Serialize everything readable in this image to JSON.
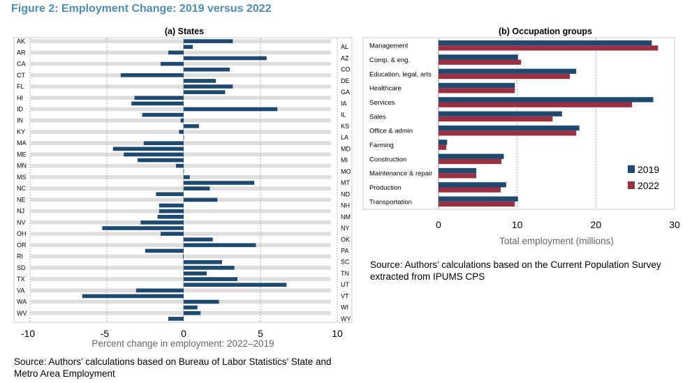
{
  "figure_title": "Figure 2: Employment Change: 2019 versus 2022",
  "colors": {
    "y2019": "#1e4a72",
    "y2022": "#9b3140",
    "band": "#dedede",
    "title": "#4a8db5",
    "axis_label": "#666666"
  },
  "chart_data": [
    {
      "type": "bar",
      "orientation": "horizontal",
      "title": "(a) States",
      "xlabel": "Percent change in employment: 2022–2019",
      "xlim": [
        -10,
        10
      ],
      "xticks": [
        "-10",
        "-5",
        "0",
        "5",
        "10"
      ],
      "categories": [
        "AK",
        "AL",
        "AR",
        "AZ",
        "CA",
        "CO",
        "CT",
        "DE",
        "FL",
        "GA",
        "HI",
        "IA",
        "ID",
        "IL",
        "IN",
        "KS",
        "KY",
        "LA",
        "MA",
        "MD",
        "ME",
        "MI",
        "MN",
        "MO",
        "MS",
        "MT",
        "NC",
        "ND",
        "NE",
        "NH",
        "NJ",
        "NM",
        "NV",
        "NY",
        "OH",
        "OK",
        "OR",
        "PA",
        "RI",
        "SC",
        "SD",
        "TN",
        "TX",
        "UT",
        "VA",
        "VT",
        "WA",
        "WI",
        "WV",
        "WY"
      ],
      "values": [
        3.2,
        0.6,
        -1.0,
        5.4,
        -1.5,
        3.0,
        -4.1,
        2.1,
        3.2,
        2.7,
        -3.2,
        -3.4,
        6.1,
        -2.7,
        -0.2,
        1.0,
        -0.3,
        0.0,
        -2.6,
        -4.6,
        -3.9,
        -3.0,
        -0.5,
        0.0,
        0.4,
        4.6,
        1.7,
        -1.8,
        2.2,
        -1.6,
        -1.6,
        -1.7,
        -2.8,
        -5.3,
        -1.5,
        1.9,
        4.7,
        -2.5,
        -0.05,
        2.5,
        3.3,
        1.5,
        3.5,
        6.7,
        -3.1,
        -6.6,
        2.3,
        0.9,
        1.1,
        -1.0
      ]
    },
    {
      "type": "bar",
      "orientation": "horizontal",
      "title": "(b) Occupation groups",
      "xlabel": "Total employment (millions)",
      "xlim": [
        0,
        30
      ],
      "xticks": [
        "0",
        "10",
        "20",
        "30"
      ],
      "categories": [
        "Management",
        "Comp. & eng.",
        "Education, legal, arts",
        "Healthcare",
        "Services",
        "Sales",
        "Office & admin",
        "Farming",
        "Construction",
        "Maintenance & repair",
        "Production",
        "Transportation"
      ],
      "series": [
        {
          "name": "2019",
          "values": [
            27.1,
            10.1,
            17.5,
            9.7,
            27.3,
            15.7,
            17.9,
            1.1,
            8.3,
            4.8,
            8.6,
            10.1
          ]
        },
        {
          "name": "2022",
          "values": [
            27.9,
            10.5,
            16.7,
            9.7,
            24.6,
            14.5,
            17.5,
            1.0,
            8.0,
            4.8,
            7.9,
            9.7
          ]
        }
      ],
      "legend_position": "bottom-right"
    }
  ],
  "source_a": "Source: Authors’ calculations based on Bureau of Labor Statistics’ State and Metro Area Employment",
  "source_b": "Source: Authors’ calculations based on the Current Population Survey extracted from IPUMS CPS"
}
